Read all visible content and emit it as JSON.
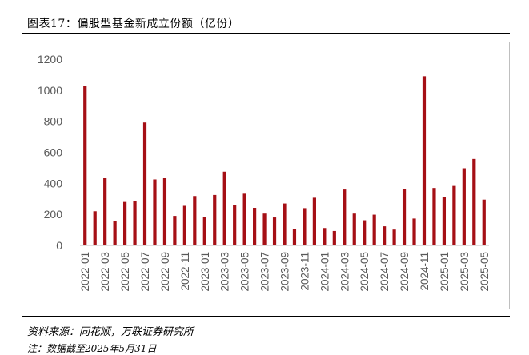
{
  "header": {
    "title": "图表17：偏股型基金新成立份额（亿份）"
  },
  "footer": {
    "source": "资料来源：同花顺，万联证券研究所",
    "note": "注：数据截至2025年5月31日"
  },
  "colors": {
    "bar": "#a50f15",
    "axis": "#bfbfbf",
    "text": "#595959"
  },
  "chart_data": {
    "type": "bar",
    "title": "",
    "xlabel": "",
    "ylabel": "",
    "ylim": [
      0,
      1200
    ],
    "yticks": [
      0,
      200,
      400,
      600,
      800,
      1000,
      1200
    ],
    "grid": false,
    "legend": "none",
    "categories": [
      "2022-01",
      "2022-02",
      "2022-03",
      "2022-04",
      "2022-05",
      "2022-06",
      "2022-07",
      "2022-08",
      "2022-09",
      "2022-10",
      "2022-11",
      "2022-12",
      "2023-01",
      "2023-02",
      "2023-03",
      "2023-04",
      "2023-05",
      "2023-06",
      "2023-07",
      "2023-08",
      "2023-09",
      "2023-10",
      "2023-11",
      "2023-12",
      "2024-01",
      "2024-02",
      "2024-03",
      "2024-04",
      "2024-05",
      "2024-06",
      "2024-07",
      "2024-08",
      "2024-09",
      "2024-10",
      "2024-11",
      "2024-12",
      "2025-01",
      "2025-02",
      "2025-03",
      "2025-04",
      "2025-05"
    ],
    "tick_labels": [
      "2022-01",
      "2022-03",
      "2022-05",
      "2022-07",
      "2022-09",
      "2022-11",
      "2023-01",
      "2023-03",
      "2023-05",
      "2023-07",
      "2023-09",
      "2023-11",
      "2024-01",
      "2024-03",
      "2024-05",
      "2024-07",
      "2024-09",
      "2024-11",
      "2025-01",
      "2025-03",
      "2025-05"
    ],
    "values": [
      1025,
      220,
      437,
      157,
      280,
      285,
      792,
      425,
      437,
      190,
      255,
      318,
      185,
      325,
      475,
      258,
      333,
      242,
      205,
      180,
      270,
      103,
      240,
      307,
      112,
      93,
      360,
      205,
      162,
      198,
      123,
      102,
      365,
      173,
      1090,
      370,
      312,
      383,
      497,
      557,
      295
    ]
  }
}
